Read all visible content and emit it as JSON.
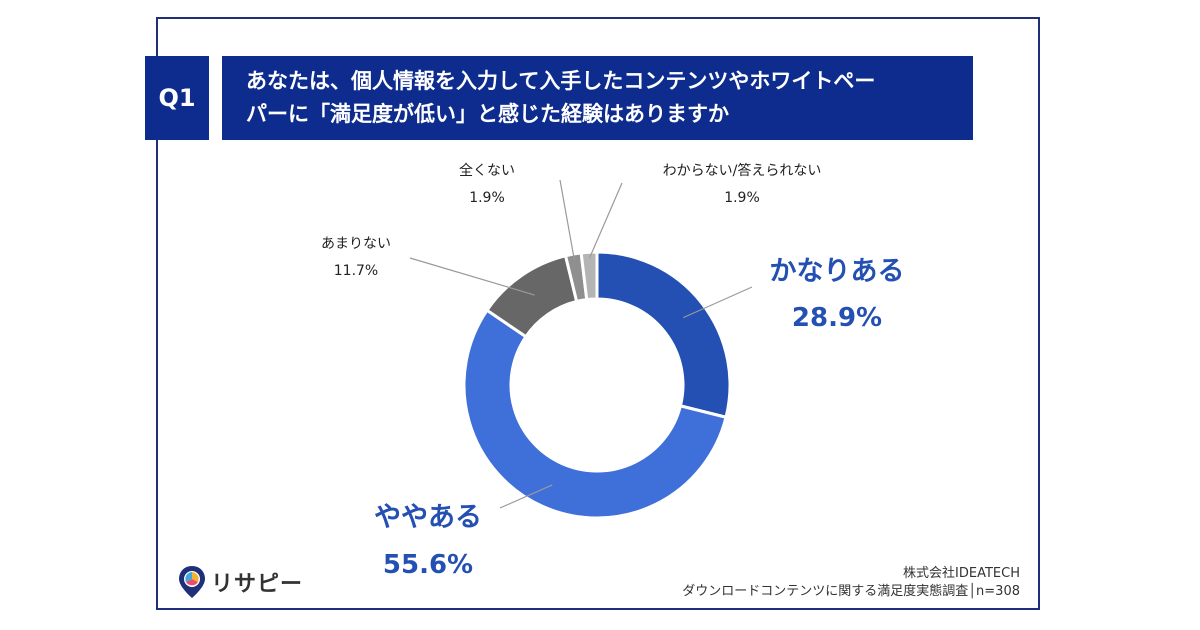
{
  "question": {
    "badge": "Q1",
    "line1": "あなたは、個人情報を入力して入手したコンテンツやホワイトペー",
    "line2": "パーに「満足度が低い」と感じた経験はありますか"
  },
  "chart_data": {
    "type": "pie",
    "variant": "donut",
    "categories": [
      "かなりある",
      "ややある",
      "あまりない",
      "全くない",
      "わからない/答えられない"
    ],
    "values": [
      28.9,
      55.6,
      11.7,
      1.9,
      1.9
    ],
    "value_labels": [
      "28.9%",
      "55.6%",
      "11.7%",
      "1.9%",
      "1.9%"
    ],
    "colors": [
      "#2350b2",
      "#3f6fd9",
      "#676767",
      "#8f8f8f",
      "#b4b4b4"
    ],
    "start": "12 o'clock",
    "direction": "clockwise"
  },
  "footer": {
    "line1": "株式会社IDEATECH",
    "line2": "ダウンロードコンテンツに関する満足度実態調査│n=308"
  },
  "logo": {
    "text": "リサピー",
    "icon": "location-pin-icon"
  }
}
